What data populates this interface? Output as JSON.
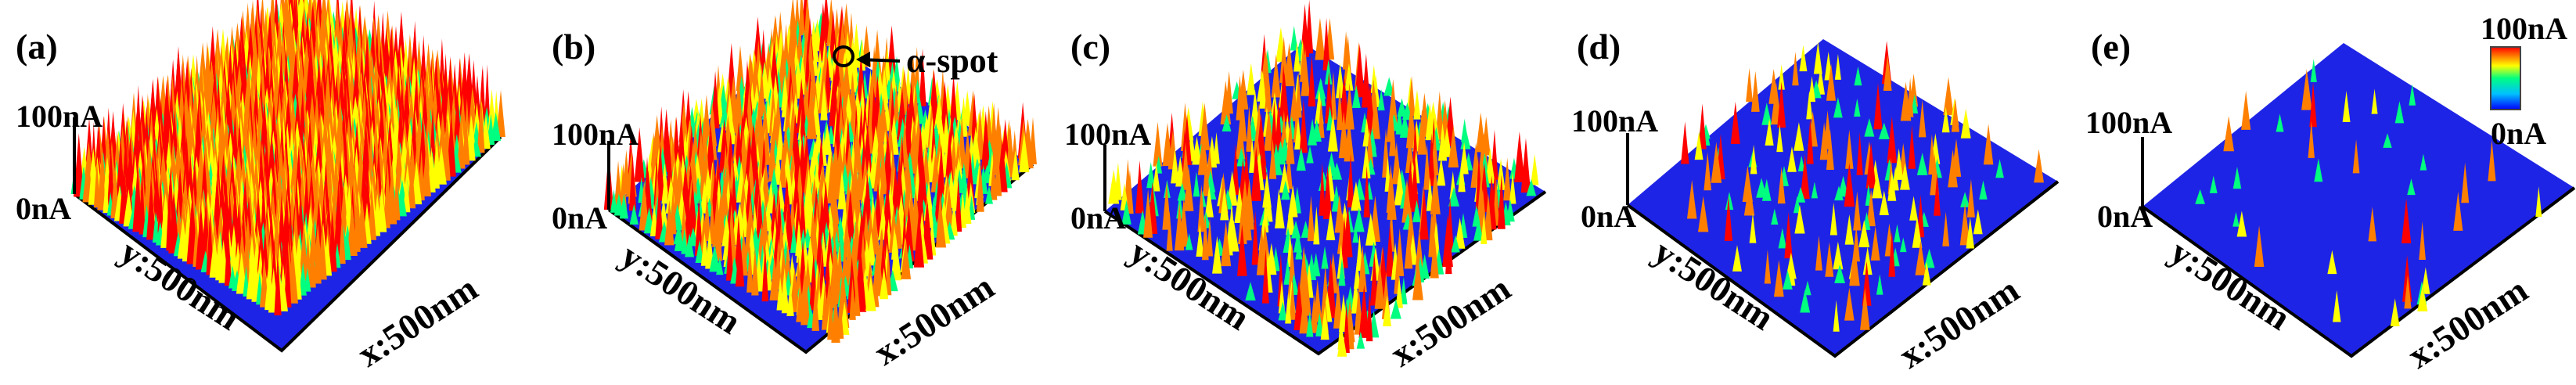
{
  "panels": [
    {
      "label": "(a)",
      "z_max": "100nA",
      "z_min": "0nA",
      "y_axis": "y:500nm",
      "x_axis": "x:500nm",
      "coverage": 1.0
    },
    {
      "label": "(b)",
      "z_max": "100nA",
      "z_min": "0nA",
      "y_axis": "y:500nm",
      "x_axis": "x:500nm",
      "coverage": 0.55,
      "annotation": "α-spot"
    },
    {
      "label": "(c)",
      "z_max": "100nA",
      "z_min": "0nA",
      "y_axis": "y:500nm",
      "x_axis": "x:500nm",
      "coverage": 0.2
    },
    {
      "label": "(d)",
      "z_max": "100nA",
      "z_min": "0nA",
      "y_axis": "y:500nm",
      "x_axis": "x:500nm",
      "coverage": 0.08
    },
    {
      "label": "(e)",
      "z_max": "100nA",
      "z_min": "0nA",
      "y_axis": "y:500nm",
      "x_axis": "x:500nm",
      "coverage": 0.02
    }
  ],
  "colorbar": {
    "max_label": "100nA",
    "min_label": "0nA",
    "colors": [
      "#0000ff",
      "#00c0ff",
      "#00ff80",
      "#ffff00",
      "#ff8000",
      "#ff0000"
    ]
  }
}
